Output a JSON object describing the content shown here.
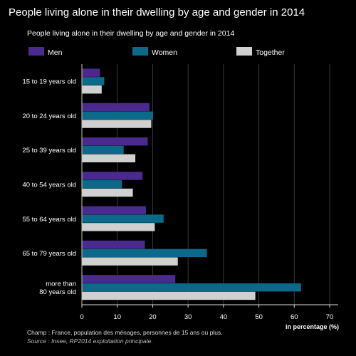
{
  "page_title": "People living alone in their dwelling by age and gender in 2014",
  "footer": {
    "champ": "Champ : France, population des ménages, personnes de 15 ans ou plus.",
    "source": "Source : Insee, RP2014 exploitation principale."
  },
  "chart_data": {
    "type": "bar",
    "orientation": "horizontal",
    "title": "People living alone in their dwelling by age and gender in 2014",
    "xlabel": "in percentage (%)",
    "ylabel": "",
    "xlim": [
      0,
      70
    ],
    "xticks": [
      0,
      10,
      20,
      30,
      40,
      50,
      60,
      70
    ],
    "grid": true,
    "legend_position": "top",
    "categories": [
      [
        "15 to 19 years old"
      ],
      [
        "20 to 24 years old"
      ],
      [
        "25 to 39 years old"
      ],
      [
        "40 to 54 years old"
      ],
      [
        "55 to 64 years old"
      ],
      [
        "65 to 79 years old"
      ],
      [
        "more than",
        "80 years old"
      ]
    ],
    "series": [
      {
        "name": "Men",
        "color": "#4a2a8e",
        "values": [
          5,
          19,
          18.5,
          17,
          18,
          17.7,
          26.3
        ]
      },
      {
        "name": "Women",
        "color": "#0b6a8a",
        "values": [
          6.2,
          20,
          11.7,
          11.2,
          23,
          35.2,
          61.8
        ]
      },
      {
        "name": "Together",
        "color": "#d0d0d0",
        "values": [
          5.5,
          19.5,
          15,
          14.3,
          20.5,
          27,
          48.9
        ]
      }
    ]
  }
}
